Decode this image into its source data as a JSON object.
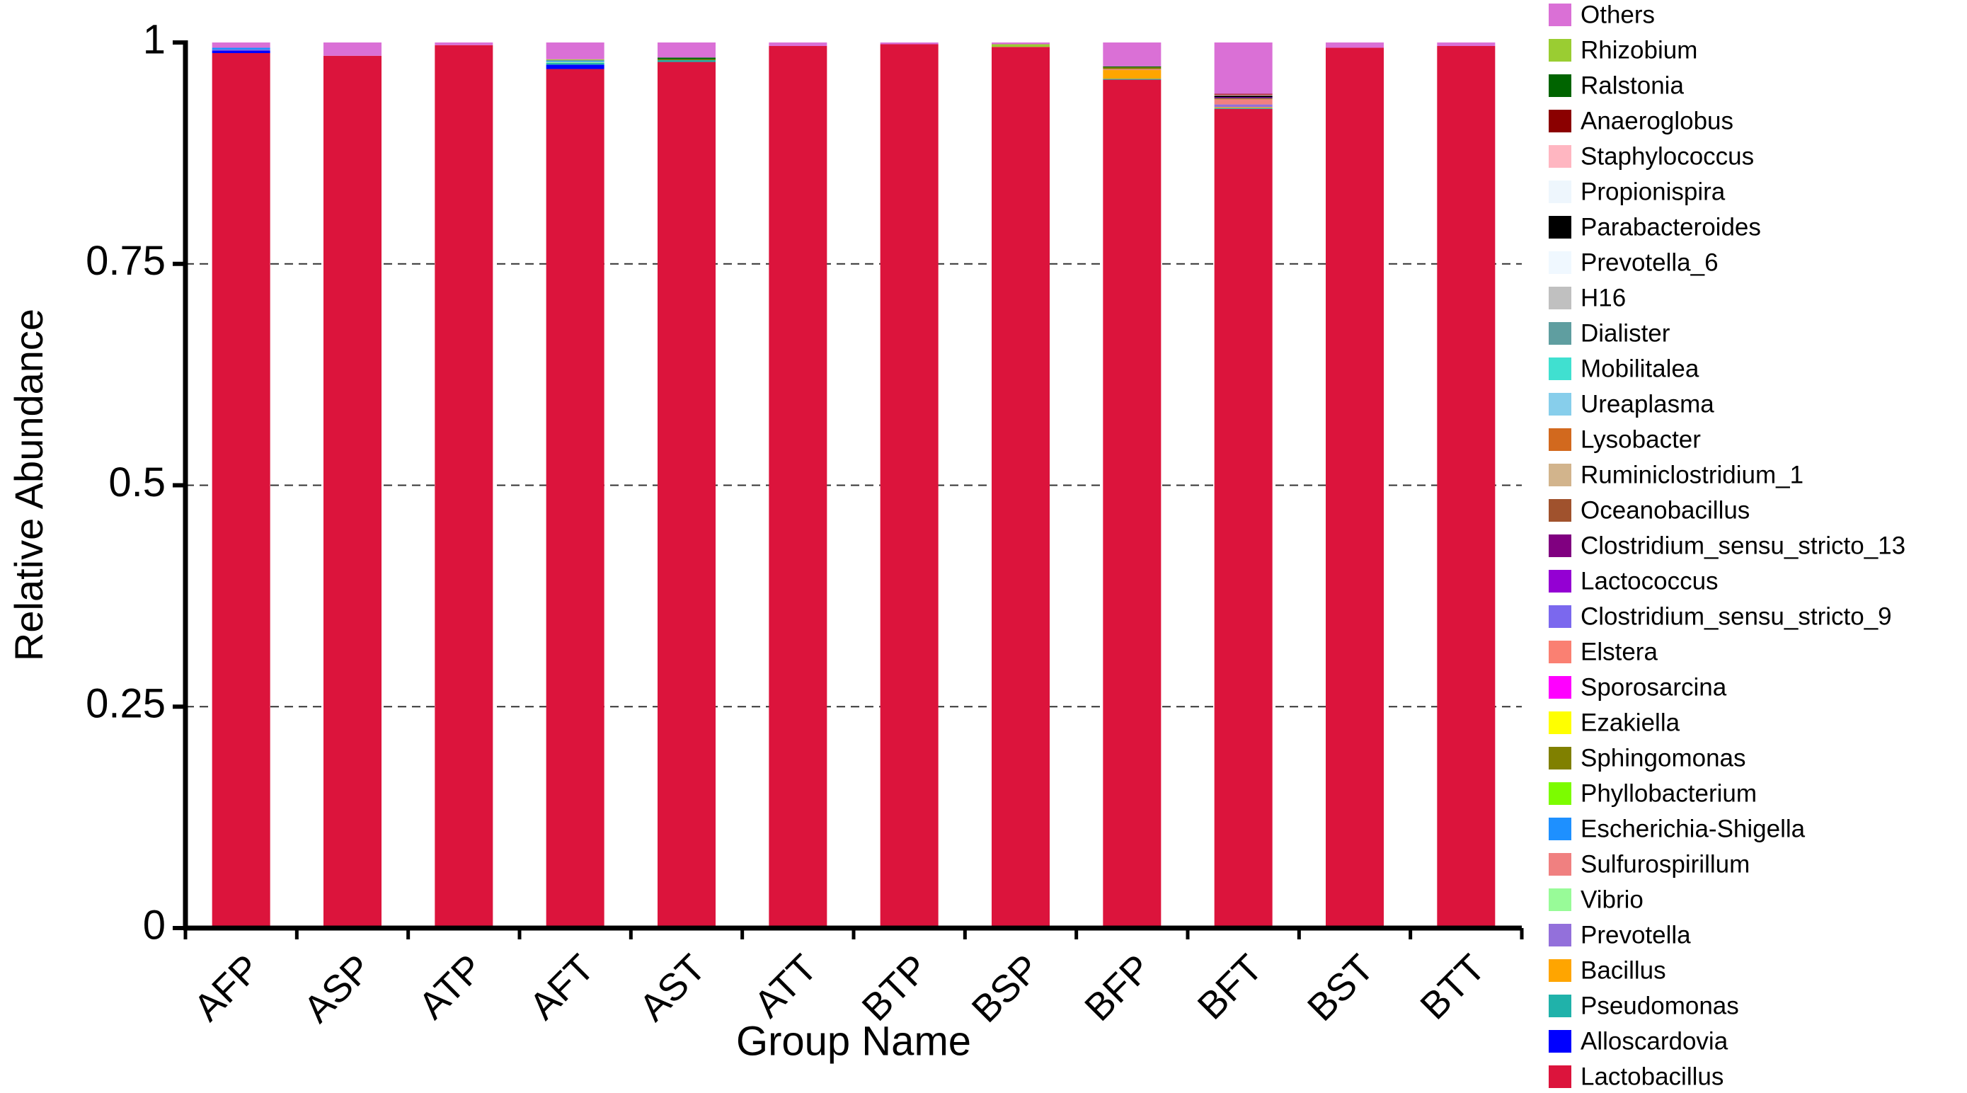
{
  "chart_data": {
    "type": "stacked_bar",
    "x_label": "Group Name",
    "y_label": "Relative Abundance",
    "categories": [
      "AFP",
      "ASP",
      "ATP",
      "AFT",
      "AST",
      "ATT",
      "BTP",
      "BSP",
      "BFP",
      "BFT",
      "BST",
      "BTT"
    ],
    "ylim": [
      0,
      1
    ],
    "yticks": [
      0,
      0.25,
      0.5,
      0.75,
      1
    ],
    "grid": true,
    "series": [
      {
        "name": "Lactobacillus",
        "color": "#dc143c",
        "values": [
          0.988,
          0.985,
          0.997,
          0.97,
          0.978,
          0.996,
          0.998,
          0.995,
          0.958,
          0.925,
          0.994,
          0.996
        ]
      },
      {
        "name": "Alloscardovia",
        "color": "#0000ff",
        "values": [
          0.003,
          0,
          0,
          0.005,
          0,
          0,
          0,
          0,
          0,
          0,
          0,
          0
        ]
      },
      {
        "name": "Pseudomonas",
        "color": "#20b2aa",
        "values": [
          0,
          0,
          0,
          0.002,
          0.002,
          0,
          0,
          0,
          0.001,
          0.001,
          0,
          0
        ]
      },
      {
        "name": "Bacillus",
        "color": "#ffa500",
        "values": [
          0,
          0,
          0,
          0,
          0,
          0,
          0,
          0,
          0.01,
          0.001,
          0,
          0
        ]
      },
      {
        "name": "Prevotella",
        "color": "#9370db",
        "values": [
          0.001,
          0,
          0,
          0,
          0,
          0,
          0,
          0,
          0,
          0.003,
          0,
          0
        ]
      },
      {
        "name": "Vibrio",
        "color": "#98fb98",
        "values": [
          0,
          0,
          0,
          0.001,
          0,
          0,
          0,
          0,
          0,
          0,
          0,
          0
        ]
      },
      {
        "name": "Sulfurospirillum",
        "color": "#f08080",
        "values": [
          0,
          0,
          0,
          0,
          0,
          0,
          0,
          0,
          0.001,
          0.006,
          0,
          0
        ]
      },
      {
        "name": "Escherichia-Shigella",
        "color": "#1e90ff",
        "values": [
          0.002,
          0,
          0,
          0.001,
          0,
          0,
          0,
          0,
          0,
          0,
          0,
          0
        ]
      },
      {
        "name": "Phyllobacterium",
        "color": "#7cfc00",
        "values": [
          0,
          0,
          0,
          0,
          0,
          0,
          0,
          0,
          0,
          0,
          0,
          0
        ]
      },
      {
        "name": "Sphingomonas",
        "color": "#808000",
        "values": [
          0,
          0,
          0,
          0,
          0.001,
          0,
          0,
          0,
          0.002,
          0.001,
          0,
          0
        ]
      },
      {
        "name": "Ezakiella",
        "color": "#ffff00",
        "values": [
          0,
          0,
          0,
          0,
          0,
          0,
          0,
          0,
          0,
          0,
          0,
          0
        ]
      },
      {
        "name": "Sporosarcina",
        "color": "#ff00ff",
        "values": [
          0,
          0,
          0,
          0,
          0,
          0,
          0,
          0,
          0,
          0,
          0,
          0
        ]
      },
      {
        "name": "Elstera",
        "color": "#fa8072",
        "values": [
          0,
          0,
          0,
          0,
          0,
          0,
          0,
          0,
          0,
          0,
          0,
          0
        ]
      },
      {
        "name": "Clostridium_sensu_stricto_9",
        "color": "#7b68ee",
        "values": [
          0,
          0,
          0,
          0,
          0,
          0,
          0,
          0,
          0,
          0,
          0,
          0
        ]
      },
      {
        "name": "Lactococcus",
        "color": "#9400d3",
        "values": [
          0,
          0,
          0,
          0,
          0,
          0,
          0,
          0,
          0,
          0.001,
          0,
          0
        ]
      },
      {
        "name": "Clostridium_sensu_stricto_13",
        "color": "#800080",
        "values": [
          0,
          0,
          0,
          0,
          0,
          0,
          0,
          0,
          0,
          0,
          0,
          0
        ]
      },
      {
        "name": "Oceanobacillus",
        "color": "#a0522d",
        "values": [
          0,
          0,
          0,
          0,
          0,
          0,
          0,
          0,
          0,
          0,
          0,
          0
        ]
      },
      {
        "name": "Ruminiclostridium_1",
        "color": "#d2b48c",
        "values": [
          0,
          0,
          0,
          0,
          0,
          0,
          0,
          0,
          0,
          0,
          0,
          0
        ]
      },
      {
        "name": "Lysobacter",
        "color": "#d2691e",
        "values": [
          0,
          0,
          0,
          0,
          0,
          0,
          0,
          0,
          0,
          0,
          0,
          0
        ]
      },
      {
        "name": "Ureaplasma",
        "color": "#87ceeb",
        "values": [
          0,
          0,
          0,
          0,
          0,
          0,
          0,
          0,
          0,
          0,
          0,
          0
        ]
      },
      {
        "name": "Mobilitalea",
        "color": "#40e0d0",
        "values": [
          0,
          0,
          0,
          0,
          0,
          0,
          0,
          0,
          0,
          0,
          0,
          0
        ]
      },
      {
        "name": "Dialister",
        "color": "#5f9ea0",
        "values": [
          0,
          0,
          0,
          0.001,
          0,
          0,
          0,
          0,
          0,
          0,
          0,
          0
        ]
      },
      {
        "name": "H16",
        "color": "#c0c0c0",
        "values": [
          0,
          0,
          0,
          0,
          0,
          0,
          0,
          0,
          0,
          0,
          0,
          0
        ]
      },
      {
        "name": "Prevotella_6",
        "color": "#f0f8ff",
        "values": [
          0,
          0,
          0,
          0,
          0,
          0,
          0,
          0,
          0,
          0,
          0,
          0
        ]
      },
      {
        "name": "Parabacteroides",
        "color": "#000000",
        "values": [
          0,
          0,
          0,
          0,
          0,
          0,
          0,
          0,
          0,
          0.002,
          0,
          0
        ]
      },
      {
        "name": "Propionispira",
        "color": "#eef6fd",
        "values": [
          0,
          0,
          0,
          0,
          0,
          0,
          0,
          0,
          0,
          0,
          0,
          0
        ]
      },
      {
        "name": "Staphylococcus",
        "color": "#ffb6c1",
        "values": [
          0,
          0,
          0,
          0,
          0,
          0,
          0,
          0,
          0,
          0.001,
          0,
          0
        ]
      },
      {
        "name": "Anaeroglobus",
        "color": "#8b0000",
        "values": [
          0,
          0,
          0,
          0,
          0,
          0,
          0,
          0,
          0,
          0.001,
          0,
          0
        ]
      },
      {
        "name": "Ralstonia",
        "color": "#006400",
        "values": [
          0,
          0,
          0,
          0,
          0.002,
          0,
          0,
          0,
          0.001,
          0,
          0,
          0
        ]
      },
      {
        "name": "Rhizobium",
        "color": "#9acd32",
        "values": [
          0,
          0,
          0,
          0.001,
          0,
          0,
          0,
          0.003,
          0,
          0,
          0,
          0
        ]
      },
      {
        "name": "Others",
        "color": "#da70d6",
        "values": [
          0.006,
          0.015,
          0.003,
          0.019,
          0.017,
          0.004,
          0.002,
          0.002,
          0.027,
          0.058,
          0.006,
          0.004
        ]
      }
    ]
  }
}
